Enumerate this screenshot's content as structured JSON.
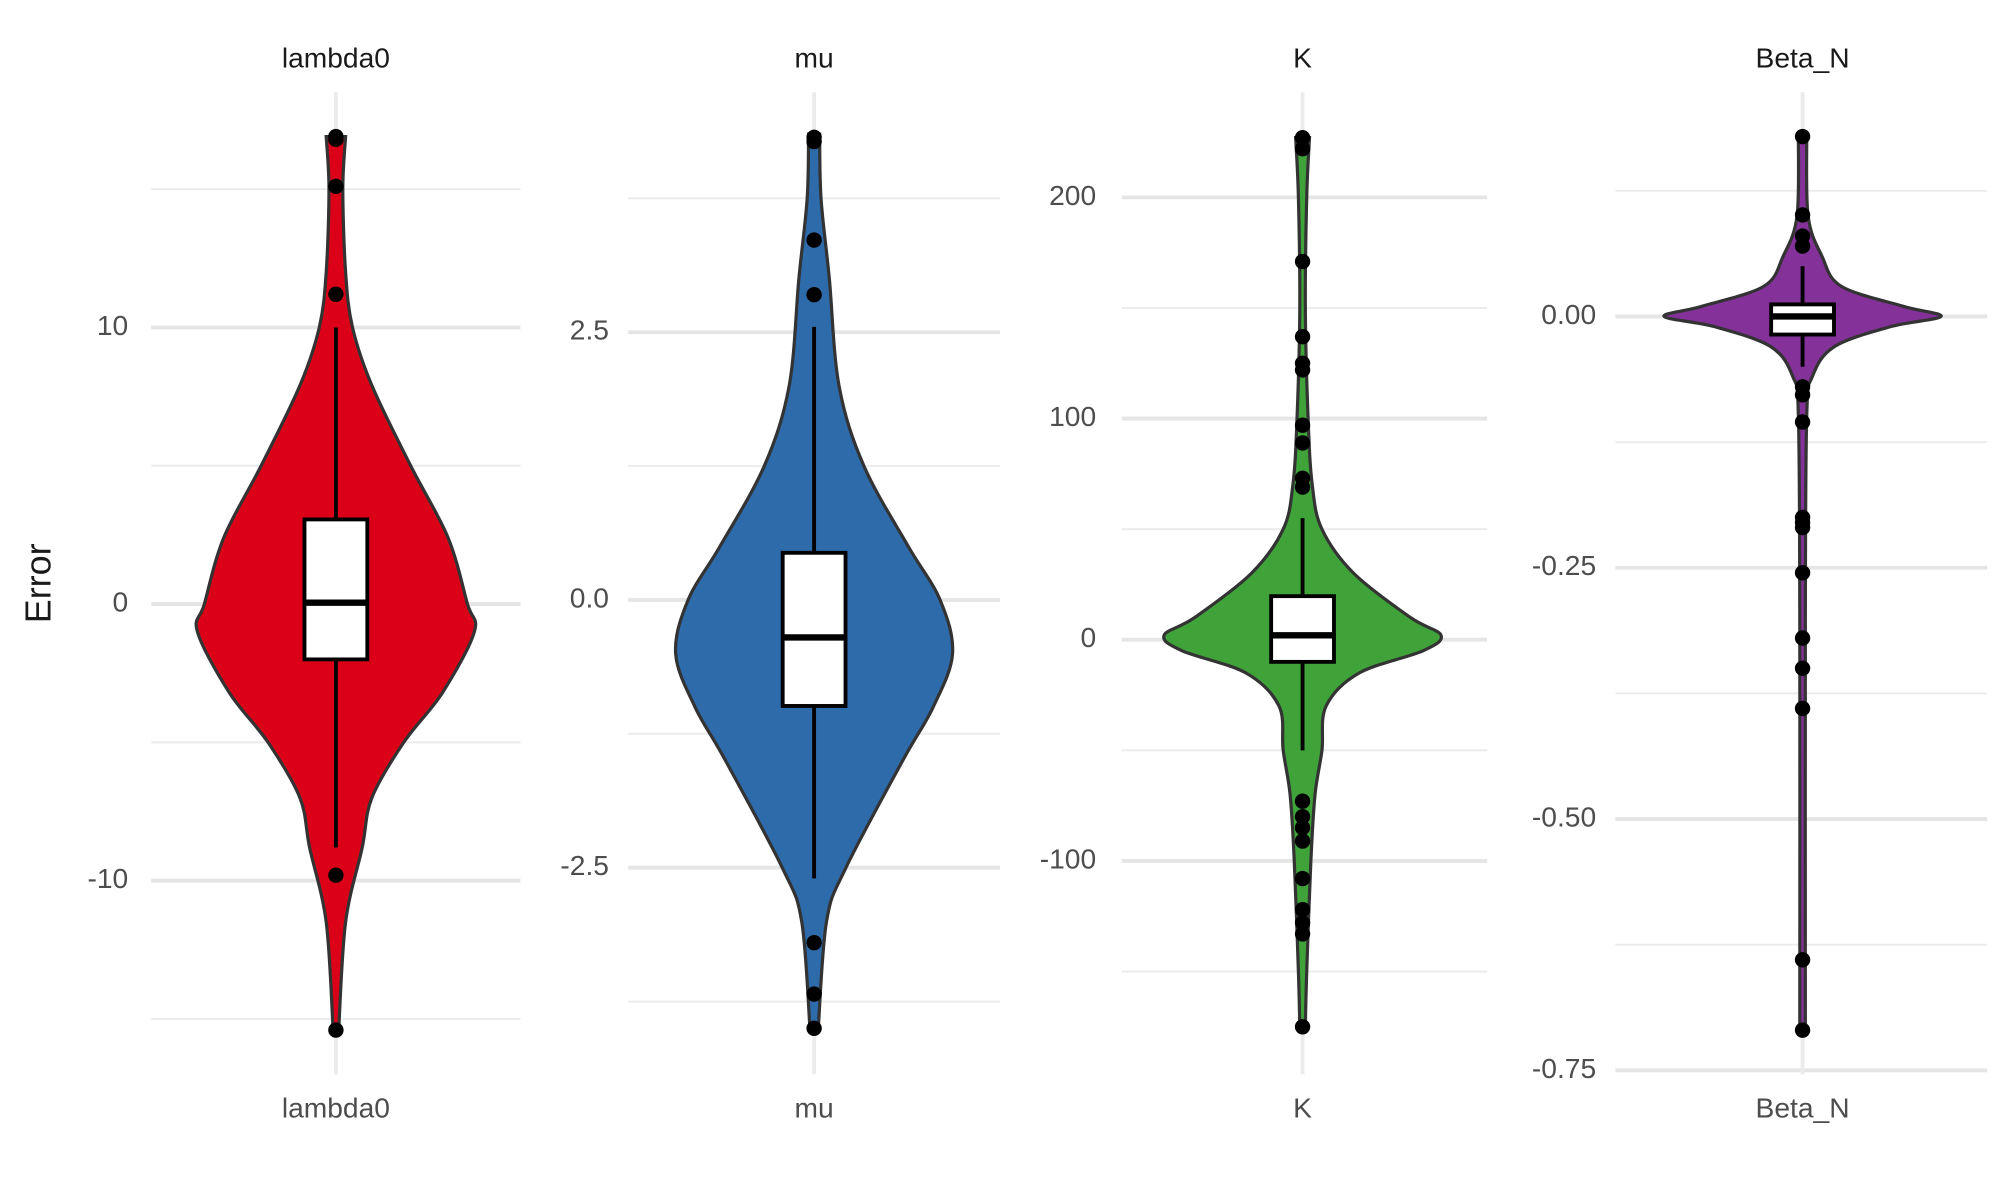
{
  "chart_data": [
    {
      "type": "violin",
      "title": "lambda0",
      "categories": [
        "lambda0"
      ],
      "y_label": "Error",
      "color": "#db0018",
      "ylim": [
        -17,
        18.5
      ],
      "yticks": [
        -10,
        0,
        10
      ],
      "minor_yticks": [
        -15,
        -5,
        5,
        15
      ],
      "grid": true,
      "box": {
        "whisker_low": -8.8,
        "q1": -2.0,
        "median": 0.05,
        "q3": 3.06,
        "whisker_high": 10
      },
      "points": [
        16.9,
        16.8,
        15.1,
        11.2,
        -9.8,
        -15.4
      ],
      "violin": {
        "y": [
          16.9,
          15,
          12,
          10,
          7.9,
          5,
          2.4,
          0,
          -1,
          -3.2,
          -5,
          -7,
          -8.8,
          -11.5,
          -15.4
        ],
        "density": [
          0.07,
          0.05,
          0.07,
          0.12,
          0.26,
          0.54,
          0.81,
          0.95,
          1,
          0.77,
          0.49,
          0.26,
          0.19,
          0.07,
          0.02
        ]
      }
    },
    {
      "type": "violin",
      "title": "mu",
      "categories": [
        "mu"
      ],
      "color": "#2e6baa",
      "ylim": [
        -4.43,
        4.74
      ],
      "yticks": [
        -2.5,
        {
          "value": 0,
          "label": "0.0"
        },
        2.5
      ],
      "minor_yticks": [
        -3.75,
        -1.25,
        1.25,
        3.75
      ],
      "grid": true,
      "box": {
        "whisker_low": -2.6,
        "q1": -0.99,
        "median": -0.35,
        "q3": 0.44,
        "whisker_high": 2.55
      },
      "points": [
        4.32,
        4.28,
        3.36,
        2.85,
        -3.2,
        -3.68,
        -4.0
      ],
      "violin": {
        "y": [
          4.35,
          3.75,
          3.0,
          2.0,
          1.25,
          0.5,
          0,
          -0.5,
          -1.0,
          -1.5,
          -2.5,
          -3.0,
          -4.0
        ],
        "density": [
          0.04,
          0.05,
          0.11,
          0.18,
          0.36,
          0.68,
          0.91,
          1,
          0.86,
          0.64,
          0.23,
          0.09,
          0.03
        ]
      }
    },
    {
      "type": "violin",
      "title": "K",
      "categories": [
        "K"
      ],
      "color": "#3fa33a",
      "ylim": [
        -196.5,
        247.5
      ],
      "yticks": [
        -100,
        0,
        100,
        200
      ],
      "minor_yticks": [
        -150,
        -50,
        50,
        150
      ],
      "grid": true,
      "box": {
        "whisker_low": -50,
        "q1": -10,
        "median": 2,
        "q3": 19.7,
        "whisker_high": 55
      },
      "points": [
        227,
        222,
        171,
        137,
        125,
        122,
        97,
        89,
        73,
        69,
        -73,
        -80,
        -85,
        -91,
        -108,
        -122,
        -128,
        -133,
        -175
      ],
      "violin": {
        "y": [
          227,
          200,
          150,
          100,
          70,
          50,
          30,
          10,
          2,
          -5,
          -15,
          -30,
          -50,
          -70,
          -100,
          -150,
          -175
        ],
        "density": [
          0.05,
          0.03,
          0.02,
          0.04,
          0.07,
          0.14,
          0.37,
          0.78,
          1,
          0.87,
          0.41,
          0.17,
          0.14,
          0.09,
          0.06,
          0.03,
          0.02
        ]
      }
    },
    {
      "type": "violin",
      "title": "Beta_N",
      "categories": [
        "Beta_N"
      ],
      "color": "#84319a",
      "ylim": [
        -0.754,
        0.223
      ],
      "yticks": [
        {
          "value": -0.75,
          "label": "-0.75"
        },
        {
          "value": -0.5,
          "label": "-0.50"
        },
        {
          "value": -0.25,
          "label": "-0.25"
        },
        {
          "value": 0,
          "label": "0.00"
        }
      ],
      "minor_yticks": [
        -0.625,
        -0.375,
        -0.125,
        0.125
      ],
      "grid": true,
      "box": {
        "whisker_low": -0.05,
        "q1": -0.018,
        "median": 0.0,
        "q3": 0.012,
        "whisker_high": 0.05
      },
      "points": [
        0.179,
        0.101,
        0.08,
        0.07,
        -0.07,
        -0.078,
        -0.105,
        -0.2,
        -0.205,
        -0.21,
        -0.255,
        -0.32,
        -0.35,
        -0.39,
        -0.64,
        -0.71
      ],
      "violin": {
        "y": [
          0.179,
          0.1,
          0.06,
          0.03,
          0.01,
          0,
          -0.01,
          -0.03,
          -0.06,
          -0.1,
          -0.3,
          -0.71
        ],
        "density": [
          0.03,
          0.04,
          0.14,
          0.28,
          0.73,
          1,
          0.64,
          0.23,
          0.07,
          0.03,
          0.02,
          0.02
        ]
      }
    }
  ]
}
